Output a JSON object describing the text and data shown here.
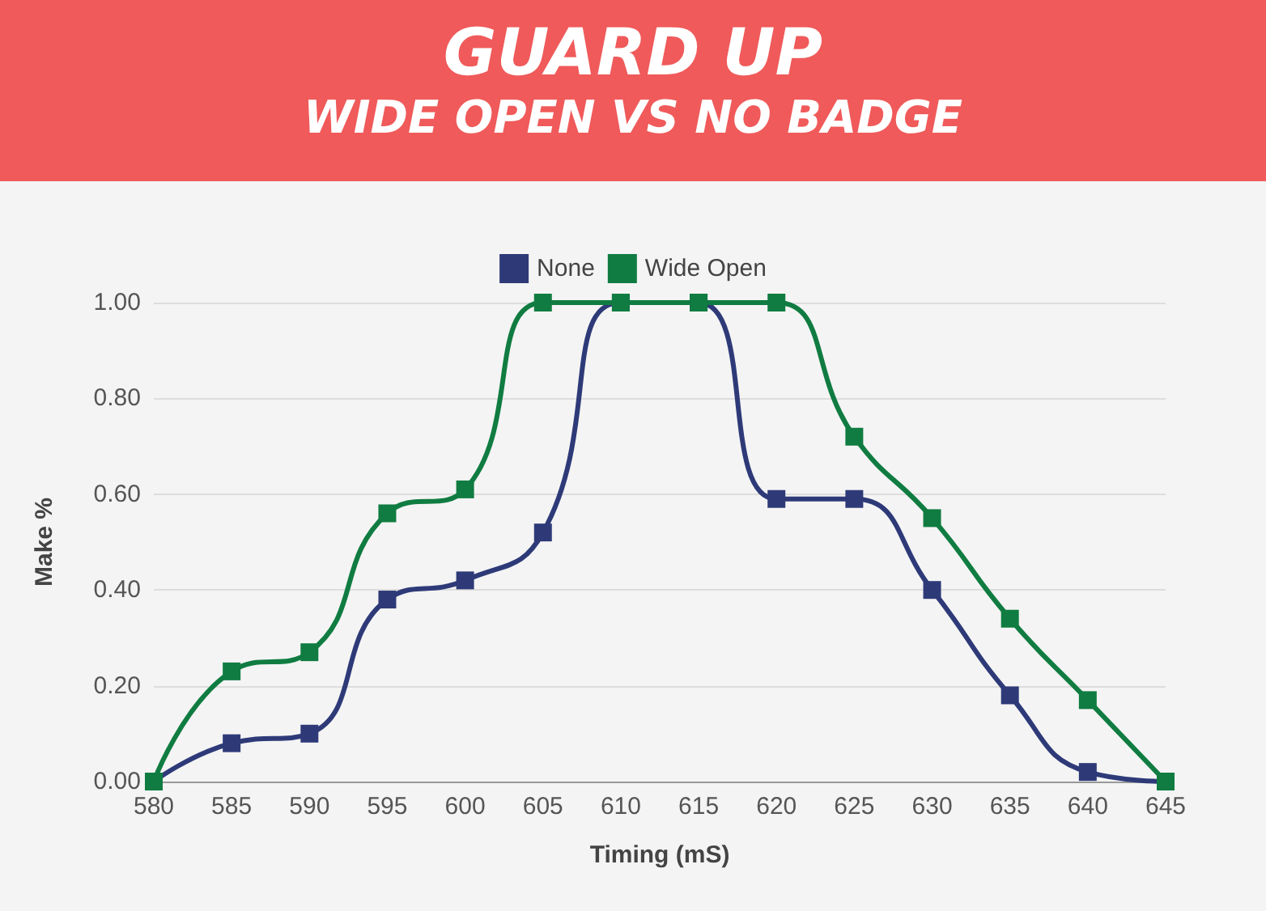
{
  "chart_data": {
    "type": "line",
    "title": "GUARD UP",
    "subtitle": "WIDE OPEN VS NO BADGE",
    "xlabel": "Timing (mS)",
    "ylabel": "Make %",
    "categories": [
      "580",
      "585",
      "590",
      "595",
      "600",
      "605",
      "610",
      "615",
      "620",
      "625",
      "630",
      "635",
      "640",
      "645"
    ],
    "series": [
      {
        "name": "None",
        "color": "#2e3a78",
        "values": [
          0,
          0.08,
          0.1,
          0.38,
          0.42,
          0.52,
          1.0,
          1.0,
          0.59,
          0.59,
          0.4,
          0.18,
          0.02,
          0
        ]
      },
      {
        "name": "Wide Open",
        "color": "#107c41",
        "values": [
          0,
          0.23,
          0.27,
          0.56,
          0.61,
          1.0,
          1.0,
          1.0,
          1.0,
          0.72,
          0.55,
          0.34,
          0.17,
          0
        ]
      }
    ],
    "ylim": [
      0,
      1
    ],
    "yticks": [
      {
        "value": 0,
        "label": "0.00"
      },
      {
        "value": 0.2,
        "label": "0.20"
      },
      {
        "value": 0.4,
        "label": "0.40"
      },
      {
        "value": 0.6,
        "label": "0.60"
      },
      {
        "value": 0.8,
        "label": "0.80"
      },
      {
        "value": 1,
        "label": "1.00"
      }
    ],
    "grid": "y",
    "legend": "top",
    "marker": "square",
    "line_style": "solid"
  }
}
